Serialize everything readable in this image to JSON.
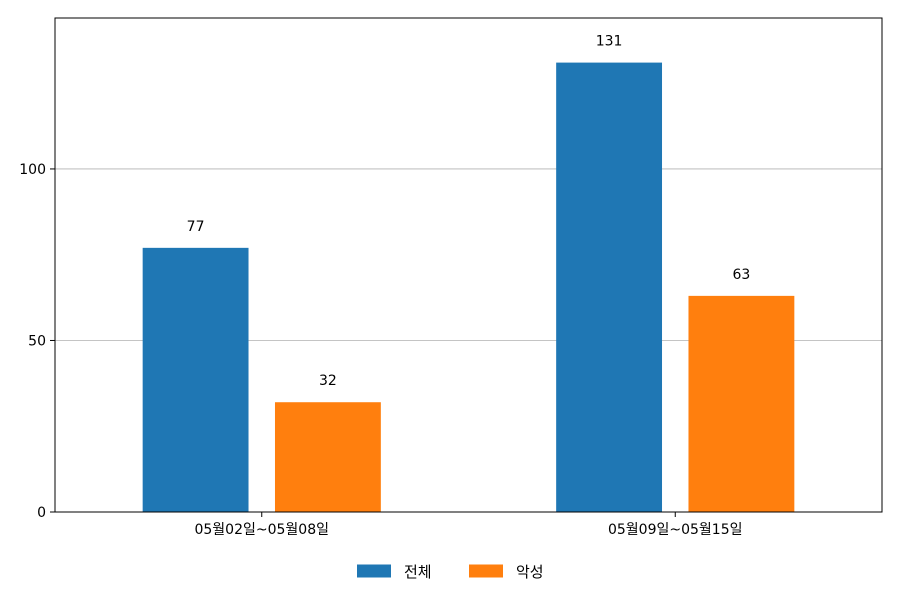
{
  "chart_data": {
    "type": "bar",
    "categories": [
      "05월02일~05월08일",
      "05월09일~05월15일"
    ],
    "series": [
      {
        "name": "전체",
        "values": [
          77,
          131
        ],
        "color": "#1f77b4"
      },
      {
        "name": "악성",
        "values": [
          32,
          63
        ],
        "color": "#ff7f0e"
      }
    ],
    "yticks": [
      0,
      50,
      100
    ],
    "ylim": [
      0,
      144
    ],
    "grid": "horizontal",
    "legend": "bottom-center",
    "data_labels": true
  }
}
